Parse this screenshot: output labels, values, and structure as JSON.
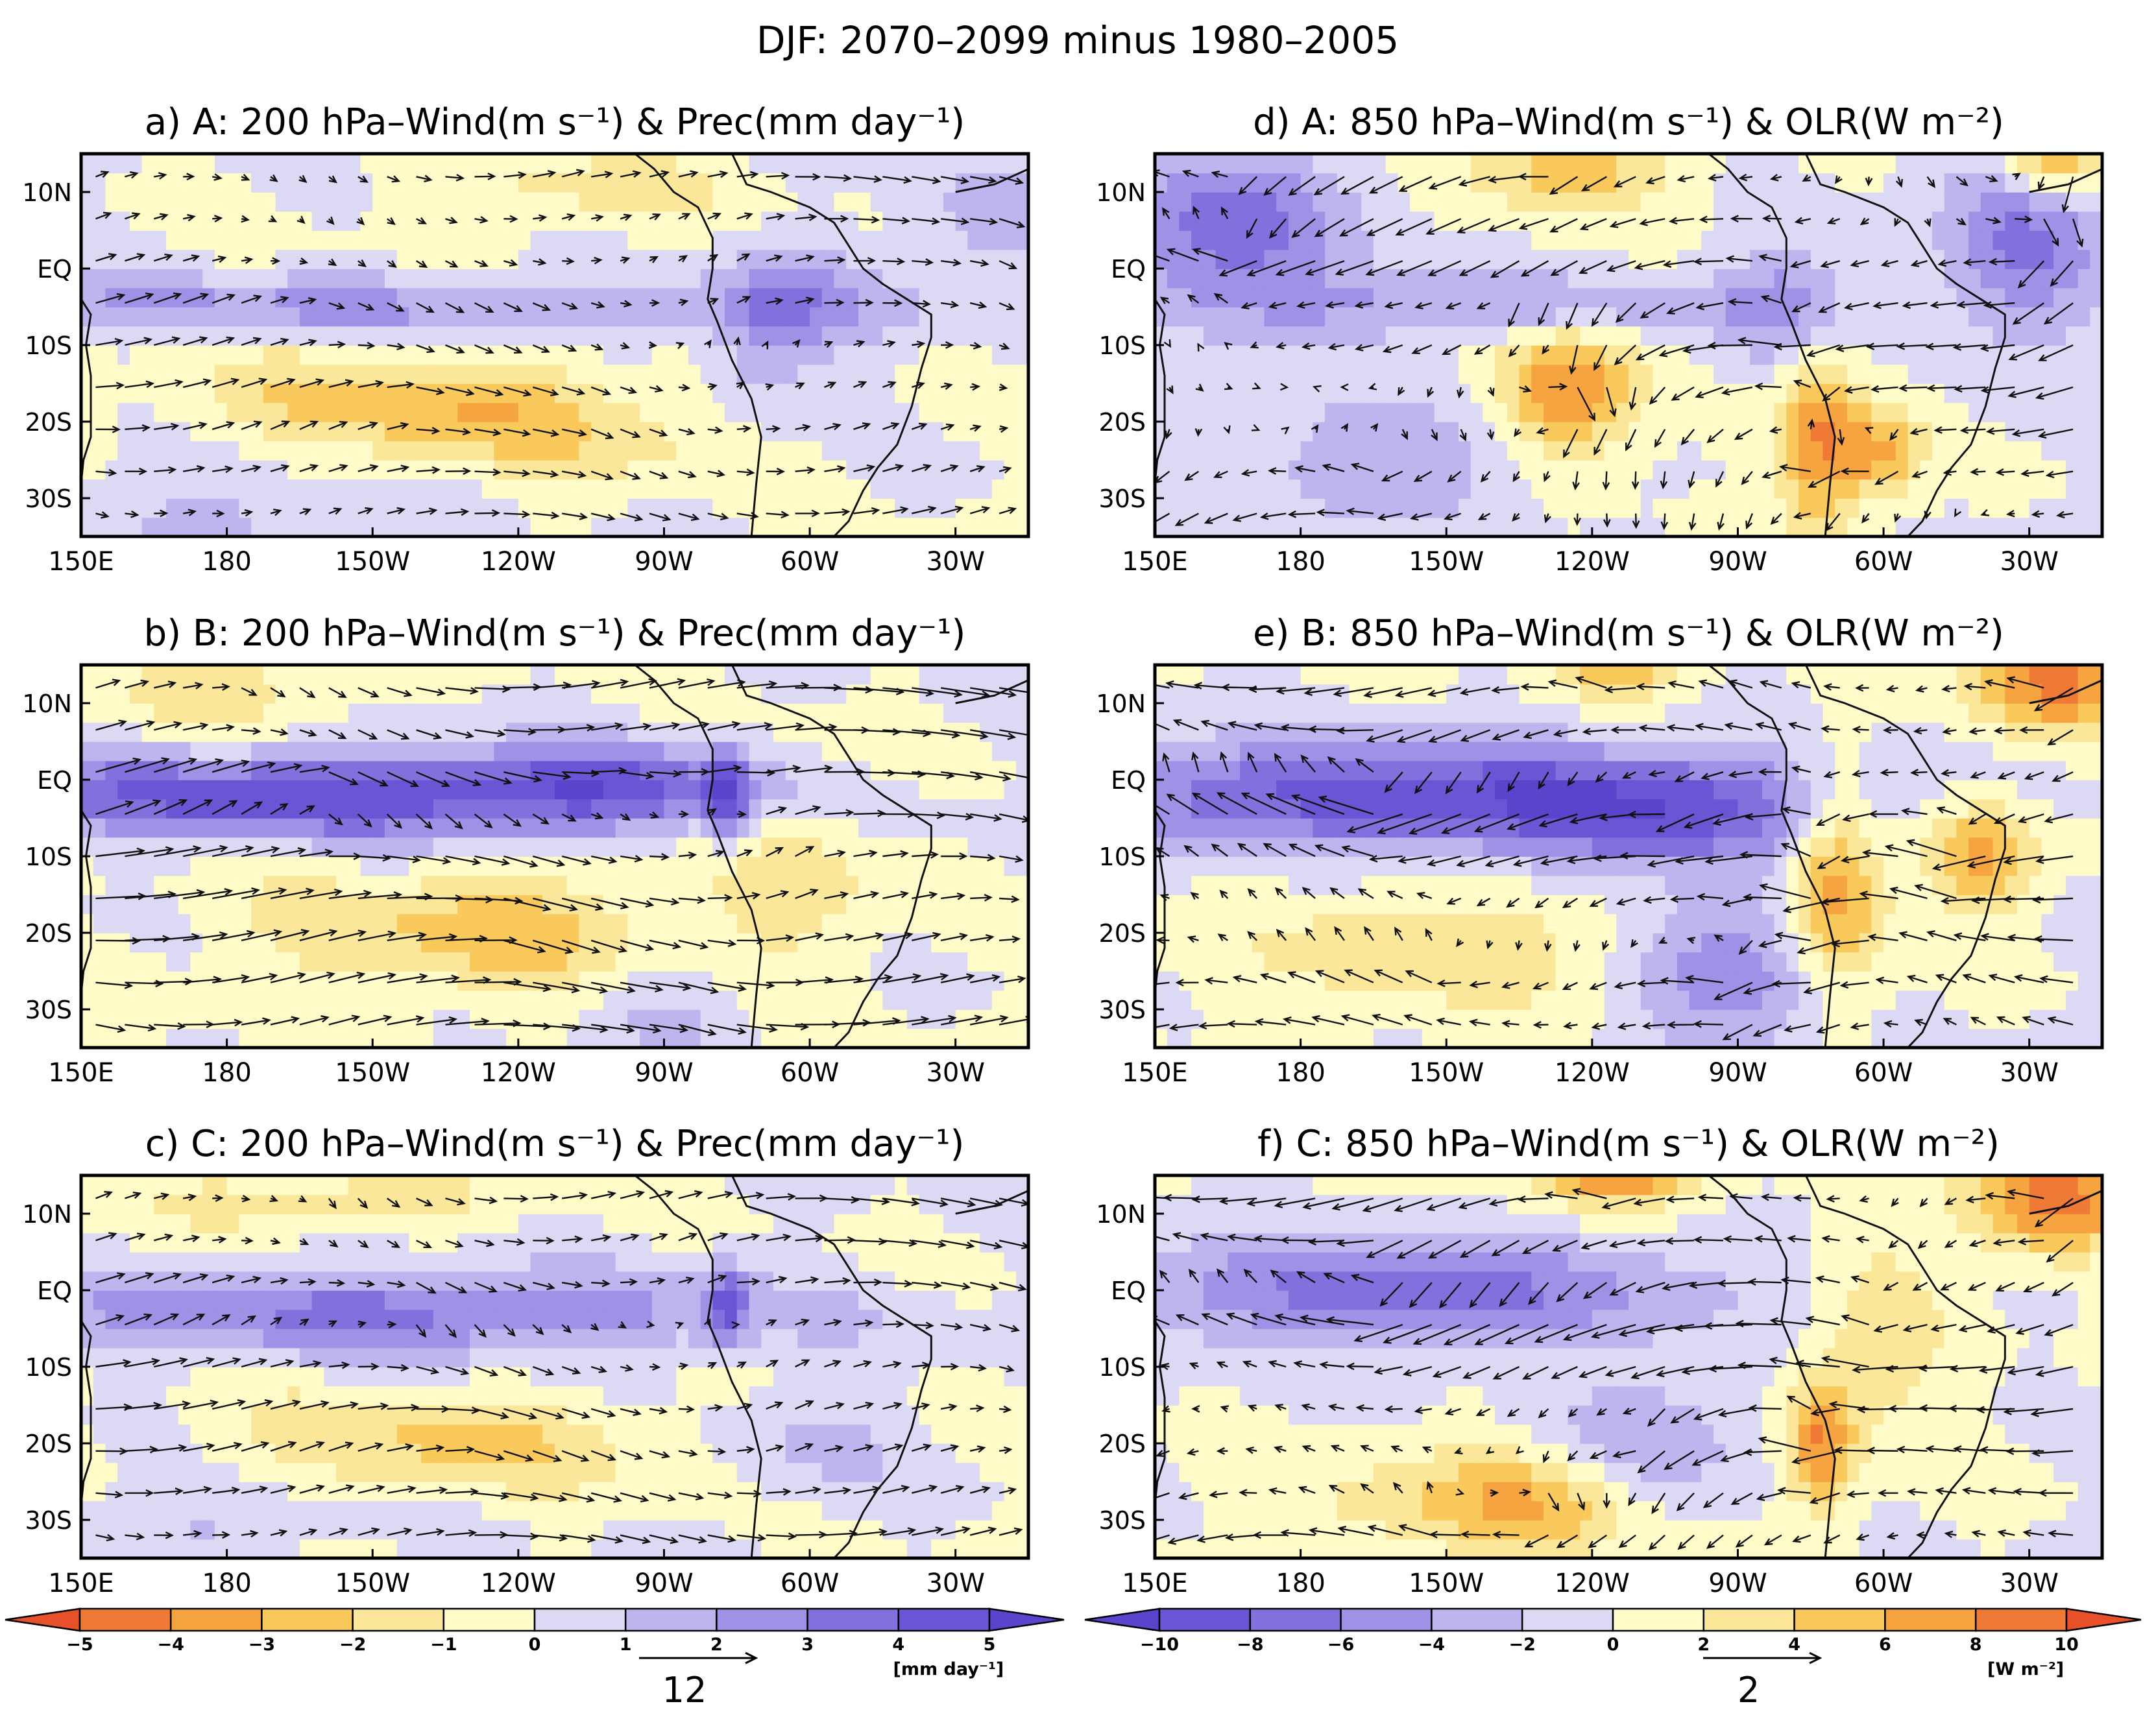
{
  "figure": {
    "title": "DJF: 2070–2099 minus 1980–2005"
  },
  "chart_data": [
    {
      "id": "a",
      "type": "heatmap",
      "title": "a) A: 200 hPa–Wind(m s⁻¹) & Prec(mm day⁻¹)",
      "variable": "Prec",
      "units": "mm day-1",
      "colormap": "prec",
      "xlim": [
        150,
        345
      ],
      "ylim": [
        -35,
        15
      ],
      "xticks": [
        "150E",
        "180",
        "150W",
        "120W",
        "90W",
        "60W",
        "30W"
      ],
      "yticks": [
        "10N",
        "EQ",
        "10S",
        "20S",
        "30S"
      ],
      "features": [
        {
          "x": 200,
          "y": -5,
          "v": 2.2,
          "sx": 80,
          "sy": 3
        },
        {
          "x": 290,
          "y": -10,
          "v": 1.8,
          "sx": 8,
          "sy": 8
        },
        {
          "x": 300,
          "y": -5,
          "v": 1.2,
          "sx": 10,
          "sy": 6
        },
        {
          "x": 215,
          "y": -17,
          "v": -2.3,
          "sx": 30,
          "sy": 5
        },
        {
          "x": 250,
          "y": -22,
          "v": -1.3,
          "sx": 30,
          "sy": 5
        },
        {
          "x": 335,
          "y": 5,
          "v": 1.4,
          "sx": 12,
          "sy": 6
        },
        {
          "x": 250,
          "y": 10,
          "v": -1.3,
          "sx": 25,
          "sy": 4
        },
        {
          "x": 175,
          "y": -32,
          "v": 1.2,
          "sx": 30,
          "sy": 5
        }
      ],
      "wind": {
        "u0": 2.5,
        "v0": 0,
        "lat_amp": 1.2,
        "scale": 0.7
      }
    },
    {
      "id": "b",
      "type": "heatmap",
      "title": "b) B: 200 hPa–Wind(m s⁻¹) & Prec(mm day⁻¹)",
      "variable": "Prec",
      "units": "mm day-1",
      "colormap": "prec",
      "xlim": [
        150,
        345
      ],
      "ylim": [
        -35,
        15
      ],
      "xticks": [
        "150E",
        "180",
        "150W",
        "120W",
        "90W",
        "60W",
        "30W"
      ],
      "yticks": [
        "10N",
        "EQ",
        "10S",
        "20S",
        "30S"
      ],
      "features": [
        {
          "x": 200,
          "y": -2,
          "v": 4.8,
          "sx": 55,
          "sy": 4
        },
        {
          "x": 260,
          "y": 0,
          "v": 2.2,
          "sx": 20,
          "sy": 4
        },
        {
          "x": 283,
          "y": -2,
          "v": 3.6,
          "sx": 3,
          "sy": 4
        },
        {
          "x": 235,
          "y": -20,
          "v": -2.4,
          "sx": 35,
          "sy": 6
        },
        {
          "x": 300,
          "y": -10,
          "v": -1.3,
          "sx": 12,
          "sy": 10
        },
        {
          "x": 180,
          "y": 12,
          "v": -1.6,
          "sx": 20,
          "sy": 4
        },
        {
          "x": 270,
          "y": -28,
          "v": 1.4,
          "sx": 12,
          "sy": 6
        }
      ],
      "wind": {
        "u0": 4,
        "v0": 0,
        "lat_amp": 1.5,
        "scale": 0.9
      }
    },
    {
      "id": "c",
      "type": "heatmap",
      "title": "c) C: 200 hPa–Wind(m s⁻¹) & Prec(mm day⁻¹)",
      "variable": "Prec",
      "units": "mm day-1",
      "colormap": "prec",
      "xlim": [
        150,
        345
      ],
      "ylim": [
        -35,
        15
      ],
      "xticks": [
        "150E",
        "180",
        "150W",
        "120W",
        "90W",
        "60W",
        "30W"
      ],
      "yticks": [
        "10N",
        "EQ",
        "10S",
        "20S",
        "30S"
      ],
      "features": [
        {
          "x": 215,
          "y": -3,
          "v": 3.3,
          "sx": 55,
          "sy": 4
        },
        {
          "x": 283,
          "y": -2,
          "v": 3.2,
          "sx": 3,
          "sy": 4
        },
        {
          "x": 225,
          "y": -20,
          "v": -2.2,
          "sx": 30,
          "sy": 5
        },
        {
          "x": 200,
          "y": 12,
          "v": -1.6,
          "sx": 30,
          "sy": 3
        },
        {
          "x": 300,
          "y": -20,
          "v": 1.2,
          "sx": 12,
          "sy": 6
        },
        {
          "x": 175,
          "y": -30,
          "v": 1.1,
          "sx": 25,
          "sy": 4
        }
      ],
      "wind": {
        "u0": 3,
        "v0": 0,
        "lat_amp": 1.3,
        "scale": 0.8
      }
    },
    {
      "id": "d",
      "type": "heatmap",
      "title": "d) A: 850 hPa–Wind(m s⁻¹) & OLR(W m⁻²)",
      "variable": "OLR",
      "units": "W m-2",
      "colormap": "olr",
      "xlim": [
        150,
        345
      ],
      "ylim": [
        -35,
        15
      ],
      "xticks": [
        "150E",
        "180",
        "150W",
        "120W",
        "90W",
        "60W",
        "30W"
      ],
      "yticks": [
        "10N",
        "EQ",
        "10S",
        "20S",
        "30S"
      ],
      "features": [
        {
          "x": 165,
          "y": 5,
          "v": -7,
          "sx": 18,
          "sy": 8
        },
        {
          "x": 220,
          "y": -5,
          "v": -4.5,
          "sx": 35,
          "sy": 3
        },
        {
          "x": 235,
          "y": -16,
          "v": 8.5,
          "sx": 10,
          "sy": 6
        },
        {
          "x": 287,
          "y": -22,
          "v": 8,
          "sx": 6,
          "sy": 9
        },
        {
          "x": 300,
          "y": -24,
          "v": 6,
          "sx": 6,
          "sy": 4
        },
        {
          "x": 280,
          "y": -5,
          "v": -4.5,
          "sx": 10,
          "sy": 6
        },
        {
          "x": 330,
          "y": 5,
          "v": -6.5,
          "sx": 12,
          "sy": 10
        },
        {
          "x": 335,
          "y": 15,
          "v": 9,
          "sx": 8,
          "sy": 4
        },
        {
          "x": 235,
          "y": 13,
          "v": 5,
          "sx": 15,
          "sy": 4
        },
        {
          "x": 200,
          "y": -25,
          "v": -4,
          "sx": 20,
          "sy": 6
        }
      ],
      "wind": {
        "u0": -2,
        "v0": -1,
        "lat_amp": 2,
        "scale": 0.9
      }
    },
    {
      "id": "e",
      "type": "heatmap",
      "title": "e) B: 850 hPa–Wind(m s⁻¹) & OLR(W m⁻²)",
      "variable": "OLR",
      "units": "W m-2",
      "colormap": "olr",
      "xlim": [
        150,
        345
      ],
      "ylim": [
        -35,
        15
      ],
      "xticks": [
        "150E",
        "180",
        "150W",
        "120W",
        "90W",
        "60W",
        "30W"
      ],
      "yticks": [
        "10N",
        "EQ",
        "10S",
        "20S",
        "30S"
      ],
      "features": [
        {
          "x": 200,
          "y": -2,
          "v": -9,
          "sx": 55,
          "sy": 5
        },
        {
          "x": 255,
          "y": -5,
          "v": -5,
          "sx": 25,
          "sy": 5
        },
        {
          "x": 268,
          "y": -25,
          "v": -6,
          "sx": 14,
          "sy": 8
        },
        {
          "x": 290,
          "y": -14,
          "v": 8,
          "sx": 7,
          "sy": 10
        },
        {
          "x": 320,
          "y": -10,
          "v": 7,
          "sx": 8,
          "sy": 5
        },
        {
          "x": 335,
          "y": 13,
          "v": 8.5,
          "sx": 12,
          "sy": 5
        },
        {
          "x": 245,
          "y": 15,
          "v": 6,
          "sx": 10,
          "sy": 3
        },
        {
          "x": 210,
          "y": -22,
          "v": 3.5,
          "sx": 30,
          "sy": 6
        }
      ],
      "wind": {
        "u0": -3,
        "v0": 0,
        "lat_amp": 1.5,
        "scale": 0.9
      }
    },
    {
      "id": "f",
      "type": "heatmap",
      "title": "f) C: 850 hPa–Wind(m s⁻¹) & OLR(W m⁻²)",
      "variable": "OLR",
      "units": "W m-2",
      "colormap": "olr",
      "xlim": [
        150,
        345
      ],
      "ylim": [
        -35,
        15
      ],
      "xticks": [
        "150E",
        "180",
        "150W",
        "120W",
        "90W",
        "60W",
        "30W"
      ],
      "yticks": [
        "10N",
        "EQ",
        "10S",
        "20S",
        "30S"
      ],
      "features": [
        {
          "x": 200,
          "y": 0,
          "v": -7,
          "sx": 45,
          "sy": 5
        },
        {
          "x": 250,
          "y": -20,
          "v": -4.5,
          "sx": 15,
          "sy": 6
        },
        {
          "x": 287,
          "y": -20,
          "v": 8,
          "sx": 5,
          "sy": 6
        },
        {
          "x": 300,
          "y": -5,
          "v": 3.5,
          "sx": 10,
          "sy": 10
        },
        {
          "x": 335,
          "y": 12,
          "v": 9,
          "sx": 12,
          "sy": 5
        },
        {
          "x": 245,
          "y": 15,
          "v": 8,
          "sx": 12,
          "sy": 3
        },
        {
          "x": 230,
          "y": -27,
          "v": 4.5,
          "sx": 15,
          "sy": 5
        },
        {
          "x": 210,
          "y": -28,
          "v": 3,
          "sx": 25,
          "sy": 5
        }
      ],
      "wind": {
        "u0": -3,
        "v0": -0.5,
        "lat_amp": 1.8,
        "scale": 0.9
      }
    }
  ],
  "colorbars": {
    "prec": {
      "labels": [
        "−5",
        "−4",
        "−3",
        "−2",
        "−1",
        "0",
        "1",
        "2",
        "3",
        "4",
        "5"
      ],
      "colors": [
        "#e8502a",
        "#ef7a36",
        "#f6a43f",
        "#f9c95c",
        "#fbe79a",
        "#fffbc8",
        "#dcd9f5",
        "#bdb5ee",
        "#9f91e6",
        "#8270dd",
        "#6b55d4",
        "#5a44cc"
      ],
      "unit_label": "[mm day⁻¹]",
      "ref_vector_value": "12"
    },
    "olr": {
      "labels": [
        "−10",
        "−8",
        "−6",
        "−4",
        "−2",
        "0",
        "2",
        "4",
        "6",
        "8",
        "10"
      ],
      "colors": [
        "#5a44cc",
        "#6b55d4",
        "#8270dd",
        "#9f91e6",
        "#bdb5ee",
        "#dcd9f5",
        "#fffbc8",
        "#fbe79a",
        "#f9c95c",
        "#f6a43f",
        "#ef7a36",
        "#e8502a"
      ],
      "unit_label": "[W m⁻²]",
      "ref_vector_value": "2"
    }
  }
}
